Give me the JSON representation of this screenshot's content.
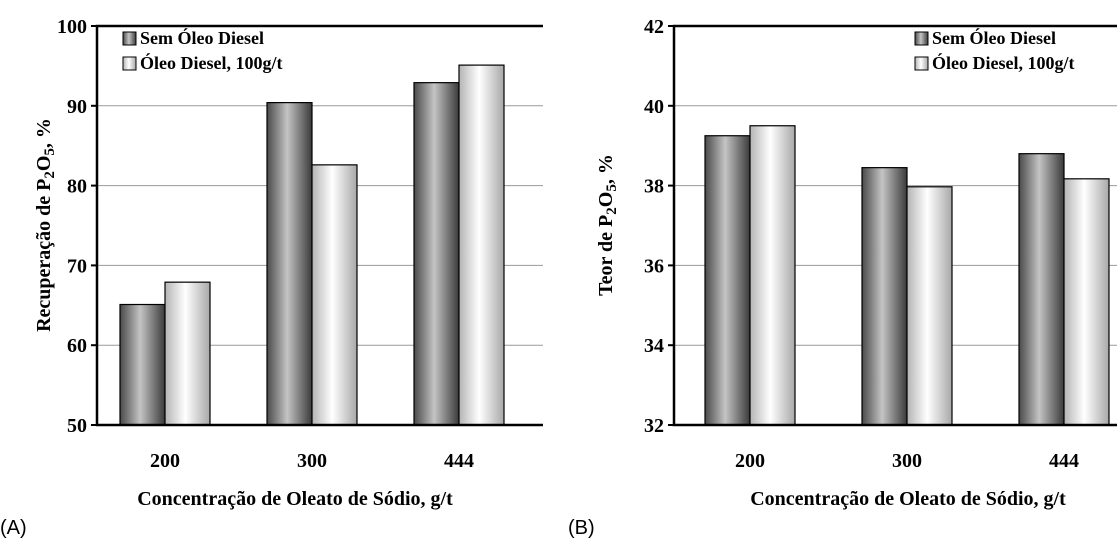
{
  "chart_data": [
    {
      "type": "bar",
      "panel_label": "(A)",
      "categories": [
        "200",
        "300",
        "444"
      ],
      "series": [
        {
          "name": "Sem Óleo Diesel",
          "values": [
            65.1,
            90.4,
            92.9
          ]
        },
        {
          "name": "Óleo Diesel, 100g/t",
          "values": [
            67.9,
            82.6,
            95.1
          ]
        }
      ],
      "xlabel": "Concentração de Oleato de Sódio, g/t",
      "ylabel": {
        "pre": "Recuperação de P",
        "sub1": "2",
        "mid": "O",
        "sub2": "5",
        "post": ", %"
      },
      "ylim": [
        50,
        100
      ],
      "yticks": [
        "50",
        "60",
        "70",
        "80",
        "90",
        "100"
      ],
      "grid": true,
      "legend": "top-left"
    },
    {
      "type": "bar",
      "panel_label": "(B)",
      "categories": [
        "200",
        "300",
        "444"
      ],
      "series": [
        {
          "name": "Sem Óleo Diesel",
          "values": [
            39.25,
            38.45,
            38.8
          ]
        },
        {
          "name": "Óleo Diesel, 100g/t",
          "values": [
            39.5,
            37.97,
            38.17
          ]
        }
      ],
      "xlabel": "Concentração de Oleato de Sódio, g/t",
      "ylabel": {
        "pre": "Teor de P",
        "sub1": "2",
        "mid": "O",
        "sub2": "5",
        "post": ", %"
      },
      "ylim": [
        32,
        42
      ],
      "yticks": [
        "32",
        "34",
        "36",
        "38",
        "40",
        "42"
      ],
      "grid": true,
      "legend": "top-right"
    }
  ]
}
